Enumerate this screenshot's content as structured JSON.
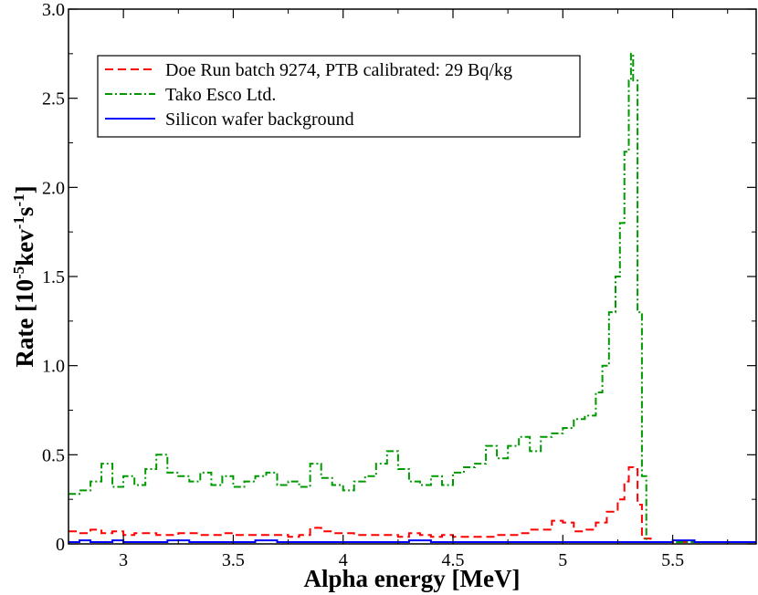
{
  "chart_data": {
    "type": "line",
    "xlabel": "Alpha energy [MeV]",
    "ylabel": {
      "base": "Rate [10",
      "exp1": "-5",
      "mid1": "kev",
      "exp2": "-1",
      "mid2": "s",
      "exp3": "-1",
      "end": "]"
    },
    "xlim": [
      2.75,
      5.88
    ],
    "ylim": [
      0,
      3.0
    ],
    "xticks": [
      3,
      3.5,
      4,
      4.5,
      5,
      5.5
    ],
    "xtick_labels": [
      "3",
      "3.5",
      "4",
      "4.5",
      "5",
      "5.5"
    ],
    "yticks": [
      0,
      0.5,
      1.0,
      1.5,
      2.0,
      2.5,
      3.0
    ],
    "ytick_labels": [
      "0",
      "0.5",
      "1.0",
      "1.5",
      "2.0",
      "2.5",
      "3.0"
    ],
    "legend_position": "top-left",
    "series": [
      {
        "name": "Doe Run batch 9274, PTB calibrated: 29 Bq/kg",
        "color": "#ff0000",
        "style": "dashed",
        "x": [
          2.75,
          2.8,
          2.85,
          2.9,
          2.95,
          3.0,
          3.05,
          3.1,
          3.15,
          3.2,
          3.25,
          3.3,
          3.35,
          3.4,
          3.45,
          3.5,
          3.55,
          3.6,
          3.65,
          3.7,
          3.75,
          3.8,
          3.85,
          3.9,
          3.95,
          4.0,
          4.05,
          4.1,
          4.15,
          4.2,
          4.25,
          4.3,
          4.35,
          4.4,
          4.45,
          4.5,
          4.55,
          4.6,
          4.65,
          4.7,
          4.75,
          4.8,
          4.85,
          4.9,
          4.95,
          5.0,
          5.05,
          5.1,
          5.15,
          5.2,
          5.25,
          5.28,
          5.3,
          5.32,
          5.34,
          5.36,
          5.4,
          5.5,
          5.6,
          5.7,
          5.8,
          5.88
        ],
        "y": [
          0.07,
          0.06,
          0.08,
          0.06,
          0.07,
          0.05,
          0.06,
          0.06,
          0.05,
          0.05,
          0.06,
          0.06,
          0.05,
          0.05,
          0.06,
          0.05,
          0.05,
          0.05,
          0.05,
          0.05,
          0.04,
          0.05,
          0.09,
          0.07,
          0.06,
          0.06,
          0.05,
          0.05,
          0.05,
          0.05,
          0.04,
          0.06,
          0.05,
          0.04,
          0.05,
          0.04,
          0.04,
          0.04,
          0.04,
          0.05,
          0.05,
          0.06,
          0.08,
          0.08,
          0.13,
          0.12,
          0.07,
          0.08,
          0.12,
          0.18,
          0.25,
          0.35,
          0.43,
          0.42,
          0.22,
          0.03,
          0.01,
          0.01,
          0.01,
          0.01,
          0.01,
          0.01
        ]
      },
      {
        "name": "Tako Esco Ltd.",
        "color": "#009900",
        "style": "dashdot",
        "x": [
          2.75,
          2.8,
          2.85,
          2.9,
          2.95,
          3.0,
          3.05,
          3.1,
          3.15,
          3.2,
          3.25,
          3.3,
          3.35,
          3.4,
          3.45,
          3.5,
          3.55,
          3.6,
          3.65,
          3.7,
          3.75,
          3.8,
          3.85,
          3.9,
          3.95,
          4.0,
          4.05,
          4.1,
          4.15,
          4.2,
          4.25,
          4.3,
          4.35,
          4.4,
          4.45,
          4.5,
          4.55,
          4.6,
          4.65,
          4.7,
          4.75,
          4.8,
          4.85,
          4.9,
          4.95,
          5.0,
          5.05,
          5.1,
          5.15,
          5.18,
          5.21,
          5.24,
          5.26,
          5.28,
          5.3,
          5.31,
          5.32,
          5.34,
          5.36,
          5.38,
          5.45,
          5.6,
          5.75,
          5.88
        ],
        "y": [
          0.28,
          0.3,
          0.35,
          0.45,
          0.32,
          0.38,
          0.33,
          0.42,
          0.5,
          0.4,
          0.38,
          0.35,
          0.4,
          0.33,
          0.38,
          0.32,
          0.35,
          0.38,
          0.4,
          0.33,
          0.35,
          0.32,
          0.45,
          0.37,
          0.33,
          0.3,
          0.35,
          0.38,
          0.45,
          0.52,
          0.42,
          0.35,
          0.33,
          0.38,
          0.33,
          0.4,
          0.43,
          0.45,
          0.55,
          0.48,
          0.55,
          0.6,
          0.52,
          0.6,
          0.62,
          0.65,
          0.7,
          0.72,
          0.85,
          1.0,
          1.3,
          1.5,
          1.8,
          2.2,
          2.6,
          2.75,
          2.6,
          1.3,
          0.38,
          0.01,
          0.01,
          0.01,
          0.01,
          0.01
        ]
      },
      {
        "name": "Silicon wafer background",
        "color": "#0000ff",
        "style": "solid",
        "x": [
          2.75,
          2.8,
          2.85,
          2.9,
          2.95,
          3.0,
          3.1,
          3.2,
          3.3,
          3.4,
          3.5,
          3.6,
          3.7,
          3.8,
          3.9,
          4.0,
          4.1,
          4.2,
          4.3,
          4.4,
          4.5,
          4.6,
          4.7,
          4.8,
          4.9,
          5.0,
          5.1,
          5.2,
          5.3,
          5.4,
          5.5,
          5.6,
          5.7,
          5.8,
          5.88
        ],
        "y": [
          0.01,
          0.02,
          0.01,
          0.01,
          0.02,
          0.01,
          0.01,
          0.02,
          0.01,
          0.01,
          0.01,
          0.02,
          0.01,
          0.01,
          0.01,
          0.01,
          0.01,
          0.01,
          0.02,
          0.01,
          0.01,
          0.01,
          0.01,
          0.01,
          0.01,
          0.01,
          0.01,
          0.01,
          0.01,
          0.01,
          0.02,
          0.01,
          0.01,
          0.01,
          0.01
        ]
      }
    ]
  }
}
